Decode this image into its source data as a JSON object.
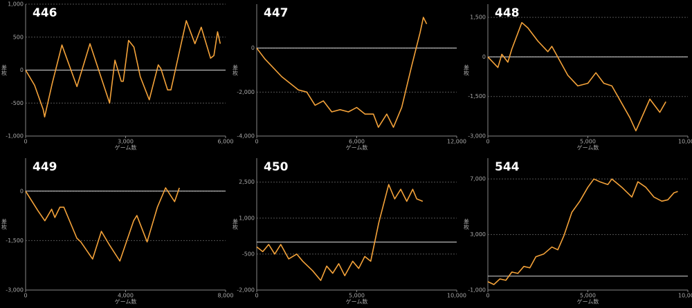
{
  "chart_data": [
    {
      "type": "line",
      "title": "446",
      "xlabel": "ゲーム数",
      "ylabel": "差枚",
      "color": "#f5a33a",
      "grid": true,
      "baseline": 0,
      "xlim": [
        0,
        6000
      ],
      "xticks": [
        0,
        {
          "value": 3000,
          "label": "3,000"
        },
        {
          "value": 6000,
          "label": "6,000"
        }
      ],
      "ylim": [
        -1000,
        1000
      ],
      "yticks": [
        {
          "value": -1000,
          "label": "-1,000"
        },
        -500,
        0,
        500,
        {
          "value": 1000,
          "label": "1,000"
        }
      ],
      "x": [
        0,
        270,
        530,
        570,
        800,
        1090,
        1540,
        1930,
        2520,
        2680,
        2870,
        2930,
        3090,
        3250,
        3440,
        3710,
        3980,
        4060,
        4260,
        4360,
        4820,
        5080,
        5270,
        5550,
        5650,
        5760,
        5840
      ],
      "values": [
        0,
        -230,
        -600,
        -710,
        -200,
        380,
        -250,
        400,
        -500,
        150,
        -170,
        -170,
        450,
        350,
        -100,
        -450,
        80,
        20,
        -300,
        -300,
        750,
        400,
        650,
        180,
        220,
        580,
        400
      ]
    },
    {
      "type": "line",
      "title": "447",
      "xlabel": "ゲーム数",
      "ylabel": "差枚",
      "color": "#f5a33a",
      "grid": true,
      "baseline": 0,
      "xlim": [
        0,
        12000
      ],
      "xticks": [
        0,
        {
          "value": 6000,
          "label": "6,000"
        },
        {
          "value": 12000,
          "label": "12,000"
        }
      ],
      "ylim": [
        -4000,
        2000
      ],
      "yticks": [
        {
          "value": -4000,
          "label": "-4,000"
        },
        {
          "value": -2000,
          "label": "-2,000"
        },
        0
      ],
      "x": [
        0,
        500,
        1000,
        1500,
        2000,
        2500,
        3000,
        3500,
        4000,
        4500,
        5000,
        5500,
        6000,
        6500,
        7000,
        7300,
        7800,
        8200,
        8700,
        9300,
        9800,
        10000,
        10200
      ],
      "values": [
        0,
        -500,
        -900,
        -1300,
        -1600,
        -1900,
        -2000,
        -2600,
        -2400,
        -2900,
        -2800,
        -2900,
        -2700,
        -3000,
        -3000,
        -3600,
        -3000,
        -3600,
        -2700,
        -800,
        700,
        1400,
        1100
      ]
    },
    {
      "type": "line",
      "title": "448",
      "xlabel": "ゲーム数",
      "ylabel": "差枚",
      "color": "#f5a33a",
      "grid": true,
      "baseline": 0,
      "xlim": [
        0,
        10000
      ],
      "xticks": [
        0,
        {
          "value": 5000,
          "label": "5,000"
        },
        {
          "value": 10000,
          "label": "10,000"
        }
      ],
      "ylim": [
        -3000,
        2000
      ],
      "yticks": [
        {
          "value": -3000,
          "label": "-3,000"
        },
        {
          "value": -1500,
          "label": "-1,500"
        },
        0,
        {
          "value": 1500,
          "label": "1,500"
        }
      ],
      "x": [
        0,
        500,
        700,
        1000,
        1200,
        1700,
        2000,
        2500,
        3000,
        3200,
        4000,
        4500,
        5000,
        5400,
        5800,
        6200,
        6500,
        7100,
        7400,
        8100,
        8600,
        8900
      ],
      "values": [
        0,
        -400,
        100,
        -200,
        300,
        1300,
        1100,
        600,
        200,
        400,
        -700,
        -1100,
        -1000,
        -600,
        -1000,
        -1100,
        -1500,
        -2300,
        -2800,
        -1600,
        -2100,
        -1700
      ]
    },
    {
      "type": "line",
      "title": "449",
      "xlabel": "ゲーム数",
      "ylabel": "差枚",
      "color": "#f5a33a",
      "grid": true,
      "baseline": 0,
      "xlim": [
        0,
        8000
      ],
      "xticks": [
        0,
        {
          "value": 4000,
          "label": "4,000"
        },
        {
          "value": 8000,
          "label": "8,000"
        }
      ],
      "ylim": [
        -3000,
        1000
      ],
      "yticks": [
        {
          "value": -3000,
          "label": "-3,000"
        },
        {
          "value": -1500,
          "label": "-1,500"
        },
        0
      ],
      "x": [
        0,
        490,
        770,
        1040,
        1170,
        1370,
        1530,
        2050,
        2210,
        2680,
        3030,
        3360,
        3770,
        4320,
        4450,
        4860,
        5270,
        5600,
        5960,
        6150
      ],
      "values": [
        0,
        -590,
        -900,
        -550,
        -800,
        -490,
        -490,
        -1430,
        -1540,
        -2060,
        -1220,
        -1640,
        -2120,
        -900,
        -740,
        -1540,
        -490,
        100,
        -320,
        100
      ]
    },
    {
      "type": "line",
      "title": "450",
      "xlabel": "ゲーム数",
      "ylabel": "差枚",
      "color": "#f5a33a",
      "grid": true,
      "baseline": 0,
      "xlim": [
        0,
        10000
      ],
      "xticks": [
        0,
        {
          "value": 5000,
          "label": "5,000"
        },
        {
          "value": 10000,
          "label": "10,000"
        }
      ],
      "ylim": [
        -2000,
        3500
      ],
      "yticks": [
        {
          "value": -2000,
          "label": "-2,000"
        },
        -500,
        {
          "value": 1000,
          "label": "1,000"
        },
        {
          "value": 2500,
          "label": "2,500"
        }
      ],
      "x": [
        0,
        300,
        600,
        900,
        1200,
        1600,
        2000,
        2300,
        2800,
        3200,
        3500,
        3800,
        4100,
        4400,
        4800,
        5100,
        5400,
        5700,
        6100,
        6600,
        6900,
        7200,
        7500,
        7800,
        8000,
        8300
      ],
      "values": [
        -200,
        -400,
        -100,
        -500,
        -100,
        -700,
        -500,
        -800,
        -1200,
        -1600,
        -1000,
        -1300,
        -900,
        -1400,
        -800,
        -1100,
        -600,
        -800,
        800,
        2400,
        1800,
        2200,
        1700,
        2200,
        1800,
        1700
      ]
    },
    {
      "type": "line",
      "title": "544",
      "xlabel": "ゲーム数",
      "ylabel": "差枚",
      "color": "#f5a33a",
      "grid": true,
      "baseline": 0,
      "xlim": [
        0,
        10000
      ],
      "xticks": [
        0,
        {
          "value": 5000,
          "label": "5,000"
        },
        {
          "value": 10000,
          "label": "10,000"
        }
      ],
      "ylim": [
        -1000,
        8500
      ],
      "yticks": [
        {
          "value": -1000,
          "label": "-1,000"
        },
        {
          "value": 3000,
          "label": "3,000"
        },
        {
          "value": 7000,
          "label": "7,000"
        }
      ],
      "x": [
        0,
        300,
        600,
        900,
        1200,
        1500,
        1800,
        2100,
        2400,
        2800,
        3200,
        3500,
        3800,
        4200,
        4600,
        5000,
        5300,
        5600,
        6000,
        6200,
        6700,
        7200,
        7500,
        7900,
        8300,
        8700,
        9000,
        9300,
        9500
      ],
      "values": [
        -400,
        -600,
        -200,
        -300,
        300,
        200,
        700,
        600,
        1400,
        1600,
        2100,
        1900,
        2900,
        4600,
        5400,
        6400,
        7000,
        6800,
        6600,
        7000,
        6400,
        5700,
        6800,
        6400,
        5700,
        5400,
        5500,
        6000,
        6100
      ]
    }
  ]
}
